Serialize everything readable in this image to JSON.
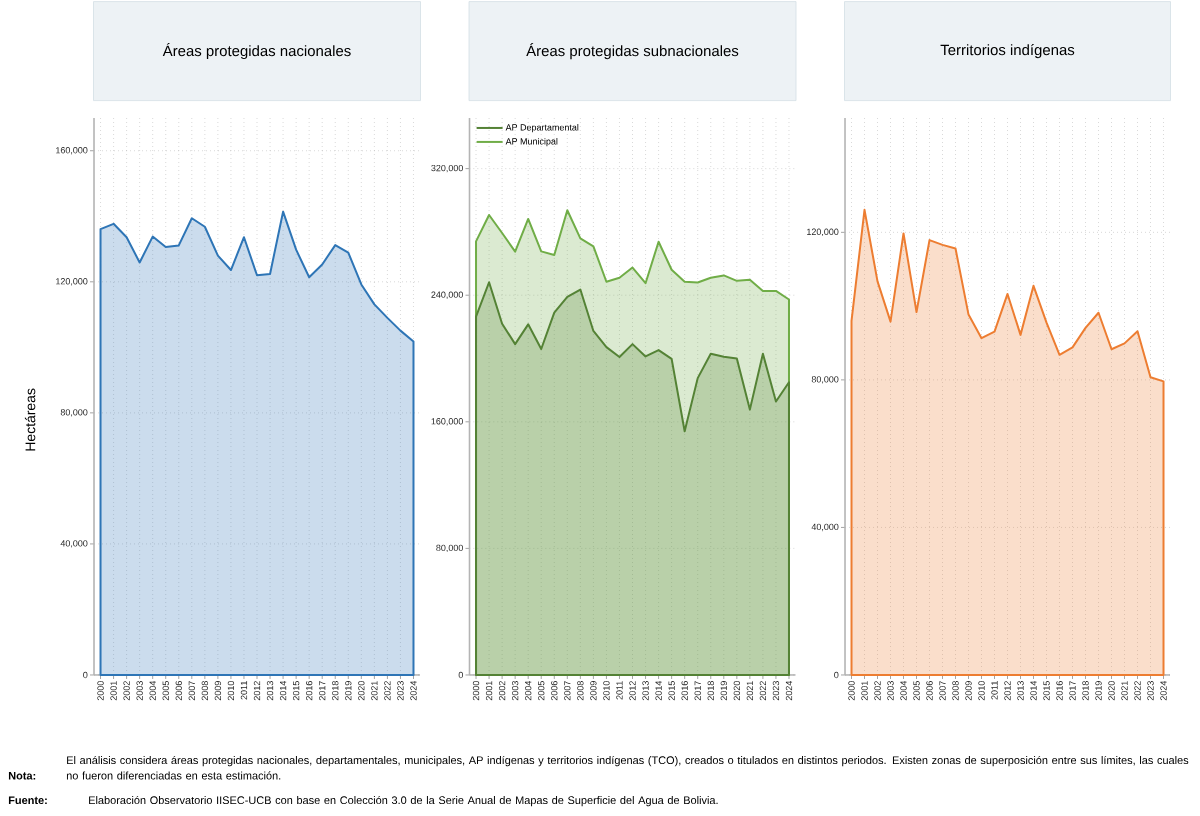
{
  "chart_data": [
    {
      "type": "area",
      "title": "Áreas protegidas nacionales",
      "ylabel": "Hectáreas",
      "categories": [
        "2000",
        "2001",
        "2002",
        "2003",
        "2004",
        "2005",
        "2006",
        "2007",
        "2008",
        "2009",
        "2010",
        "2011",
        "2012",
        "2013",
        "2014",
        "2015",
        "2016",
        "2017",
        "2018",
        "2019",
        "2020",
        "2021",
        "2022",
        "2023",
        "2024"
      ],
      "series": [
        {
          "color": "#2e75b6",
          "values": [
            136100,
            137700,
            133600,
            125900,
            133800,
            130600,
            131100,
            139400,
            136800,
            128000,
            123600,
            133600,
            122000,
            122400,
            141400,
            129800,
            121400,
            125300,
            131200,
            128900,
            119200,
            113100,
            109000,
            105100,
            101800
          ]
        }
      ],
      "ylim": [
        0,
        170000
      ],
      "yticks": [
        0,
        {
          "value": 40000,
          "label": "40,000"
        },
        {
          "value": 80000,
          "label": "80,000"
        },
        {
          "value": 120000,
          "label": "120,000"
        },
        {
          "value": 160000,
          "label": "160,000"
        }
      ],
      "grid": true,
      "line_style": "solid",
      "annotations": [
        "Nota:",
        "El análisis considera áreas protegidas nacionales, departamentales, municipales, AP indígenas y territorios indígenas (TCO), creados o titulados en distintos periodos. Existen zonas de superposición entre sus límites, las cuales no fueron diferenciadas en esta estimación.",
        "Fuente:",
        "Elaboración Observatorio IISEC-UCB con base en Colección 3.0 de la Serie Anual de Mapas de Superficie del Agua de Bolivia."
      ]
    },
    {
      "type": "area",
      "title": "Áreas protegidas subnacionales",
      "categories": [
        "2000",
        "2001",
        "2002",
        "2003",
        "2004",
        "2005",
        "2006",
        "2007",
        "2008",
        "2009",
        "2010",
        "2011",
        "2012",
        "2013",
        "2014",
        "2015",
        "2016",
        "2017",
        "2018",
        "2019",
        "2020",
        "2021",
        "2022",
        "2023",
        "2024"
      ],
      "series": [
        {
          "name": "AP Departamental",
          "color": "#548235",
          "values": [
            226500,
            248200,
            222000,
            209100,
            221600,
            206000,
            229000,
            238900,
            243600,
            217400,
            207200,
            200900,
            209100,
            201300,
            205300,
            199800,
            154000,
            187600,
            203000,
            201100,
            200000,
            167700,
            203000,
            172800,
            185000
          ]
        },
        {
          "name": "AP Municipal",
          "color": "#70ad47",
          "values": [
            274000,
            290700,
            279300,
            267500,
            288200,
            267700,
            265400,
            293700,
            275900,
            270900,
            248500,
            251000,
            257500,
            247600,
            273800,
            256100,
            248500,
            248000,
            251000,
            252500,
            249100,
            249700,
            242700,
            242700,
            237300
          ]
        }
      ],
      "ylim": [
        0,
        352000
      ],
      "yticks": [
        0,
        {
          "value": 80000,
          "label": "80,000"
        },
        {
          "value": 160000,
          "label": "160,000"
        },
        {
          "value": 240000,
          "label": "240,000"
        },
        {
          "value": 320000,
          "label": "320,000"
        }
      ],
      "grid": true,
      "line_style": "solid",
      "legend": "top left"
    },
    {
      "type": "area",
      "title": "Territorios indígenas",
      "categories": [
        "2000",
        "2001",
        "2002",
        "2003",
        "2004",
        "2005",
        "2006",
        "2007",
        "2008",
        "2009",
        "2010",
        "2011",
        "2012",
        "2013",
        "2014",
        "2015",
        "2016",
        "2017",
        "2018",
        "2019",
        "2020",
        "2021",
        "2022",
        "2023",
        "2024"
      ],
      "series": [
        {
          "color": "#ed7d31",
          "values": [
            96000,
            126100,
            106700,
            95800,
            119700,
            98400,
            117900,
            116600,
            115600,
            97700,
            91300,
            93100,
            103300,
            92200,
            105500,
            95500,
            86800,
            88800,
            94100,
            98200,
            88300,
            89900,
            93200,
            80700,
            79600
          ]
        }
      ],
      "ylim": [
        0,
        151000
      ],
      "yticks": [
        0,
        {
          "value": 40000,
          "label": "40,000"
        },
        {
          "value": 80000,
          "label": "80,000"
        },
        {
          "value": 120000,
          "label": "120,000"
        }
      ],
      "grid": true,
      "line_style": "solid"
    }
  ]
}
